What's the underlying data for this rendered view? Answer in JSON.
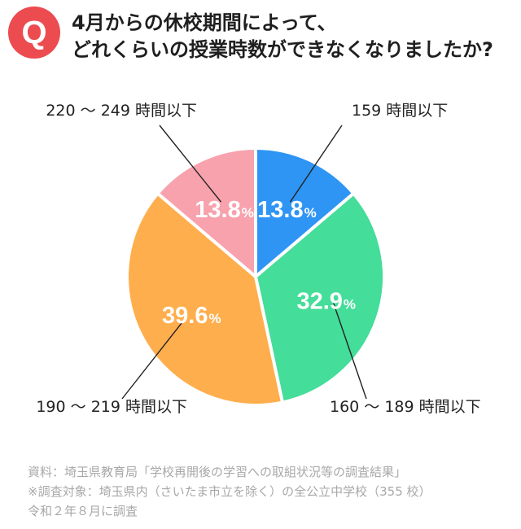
{
  "question_badge": "Q",
  "title_lines": [
    "4月からの休校期間によって、",
    "どれくらいの授業時数ができなくなりましたか?"
  ],
  "chart_data": {
    "type": "pie",
    "title": "4月からの休校期間によって、どれくらいの授業時数ができなくなりましたか?",
    "categories": [
      "159 時間以下",
      "160 〜 189 時間以下",
      "190 〜 219 時間以下",
      "220 〜 249 時間以下"
    ],
    "values": [
      13.8,
      32.9,
      39.6,
      13.8
    ],
    "value_labels": [
      "13.8",
      "32.9",
      "39.6",
      "13.8"
    ],
    "unit": "%",
    "colors": [
      "#2e95f4",
      "#44dd99",
      "#ffae4d",
      "#f7a2ad"
    ],
    "start_angle_deg": 0,
    "direction": "clockwise"
  },
  "footnotes": [
    "資料：埼玉県教育局「学校再開後の学習への取組状況等の調査結果」",
    "※調査対象：埼玉県内（さいたま市立を除く）の全公立中学校（355 校）",
    "令和２年８月に調査"
  ]
}
